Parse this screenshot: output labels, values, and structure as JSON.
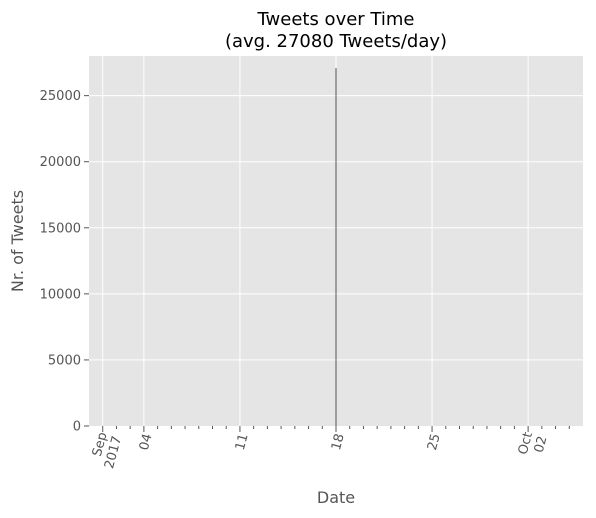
{
  "chart_data": {
    "type": "bar",
    "title_line1": "Tweets over Time",
    "title_line2": "(avg. 27080 Tweets/day)",
    "xlabel": "Date",
    "ylabel": "Nr. of Tweets",
    "xlim": [
      "2017-08-31",
      "2017-10-06"
    ],
    "ylim": [
      0,
      28000
    ],
    "grid": true,
    "y_ticks": [
      0,
      5000,
      10000,
      15000,
      20000,
      25000
    ],
    "x_major_ticks": [
      {
        "date": "2017-09-01",
        "label": "Sep",
        "sublabel": "2017"
      },
      {
        "date": "2017-09-04",
        "label": "04"
      },
      {
        "date": "2017-09-11",
        "label": "11"
      },
      {
        "date": "2017-09-18",
        "label": "18"
      },
      {
        "date": "2017-09-25",
        "label": "25"
      },
      {
        "date": "2017-10-02",
        "label": "Oct",
        "sublabel": "02"
      }
    ],
    "x_minor_ticks": [
      "2017-09-02",
      "2017-09-03",
      "2017-09-05",
      "2017-09-06",
      "2017-09-07",
      "2017-09-08",
      "2017-09-09",
      "2017-09-10",
      "2017-09-12",
      "2017-09-13",
      "2017-09-14",
      "2017-09-15",
      "2017-09-16",
      "2017-09-17",
      "2017-09-19",
      "2017-09-20",
      "2017-09-21",
      "2017-09-22",
      "2017-09-23",
      "2017-09-24",
      "2017-09-26",
      "2017-09-27",
      "2017-09-28",
      "2017-09-29",
      "2017-09-30",
      "2017-10-01",
      "2017-10-03",
      "2017-10-04",
      "2017-10-05"
    ],
    "x": [
      "2017-09-18"
    ],
    "values": [
      27080
    ],
    "bar_color": "#555555",
    "colors": {
      "plot_bg": "#e5e5e5",
      "grid": "#ffffff",
      "text": "#555555"
    }
  }
}
